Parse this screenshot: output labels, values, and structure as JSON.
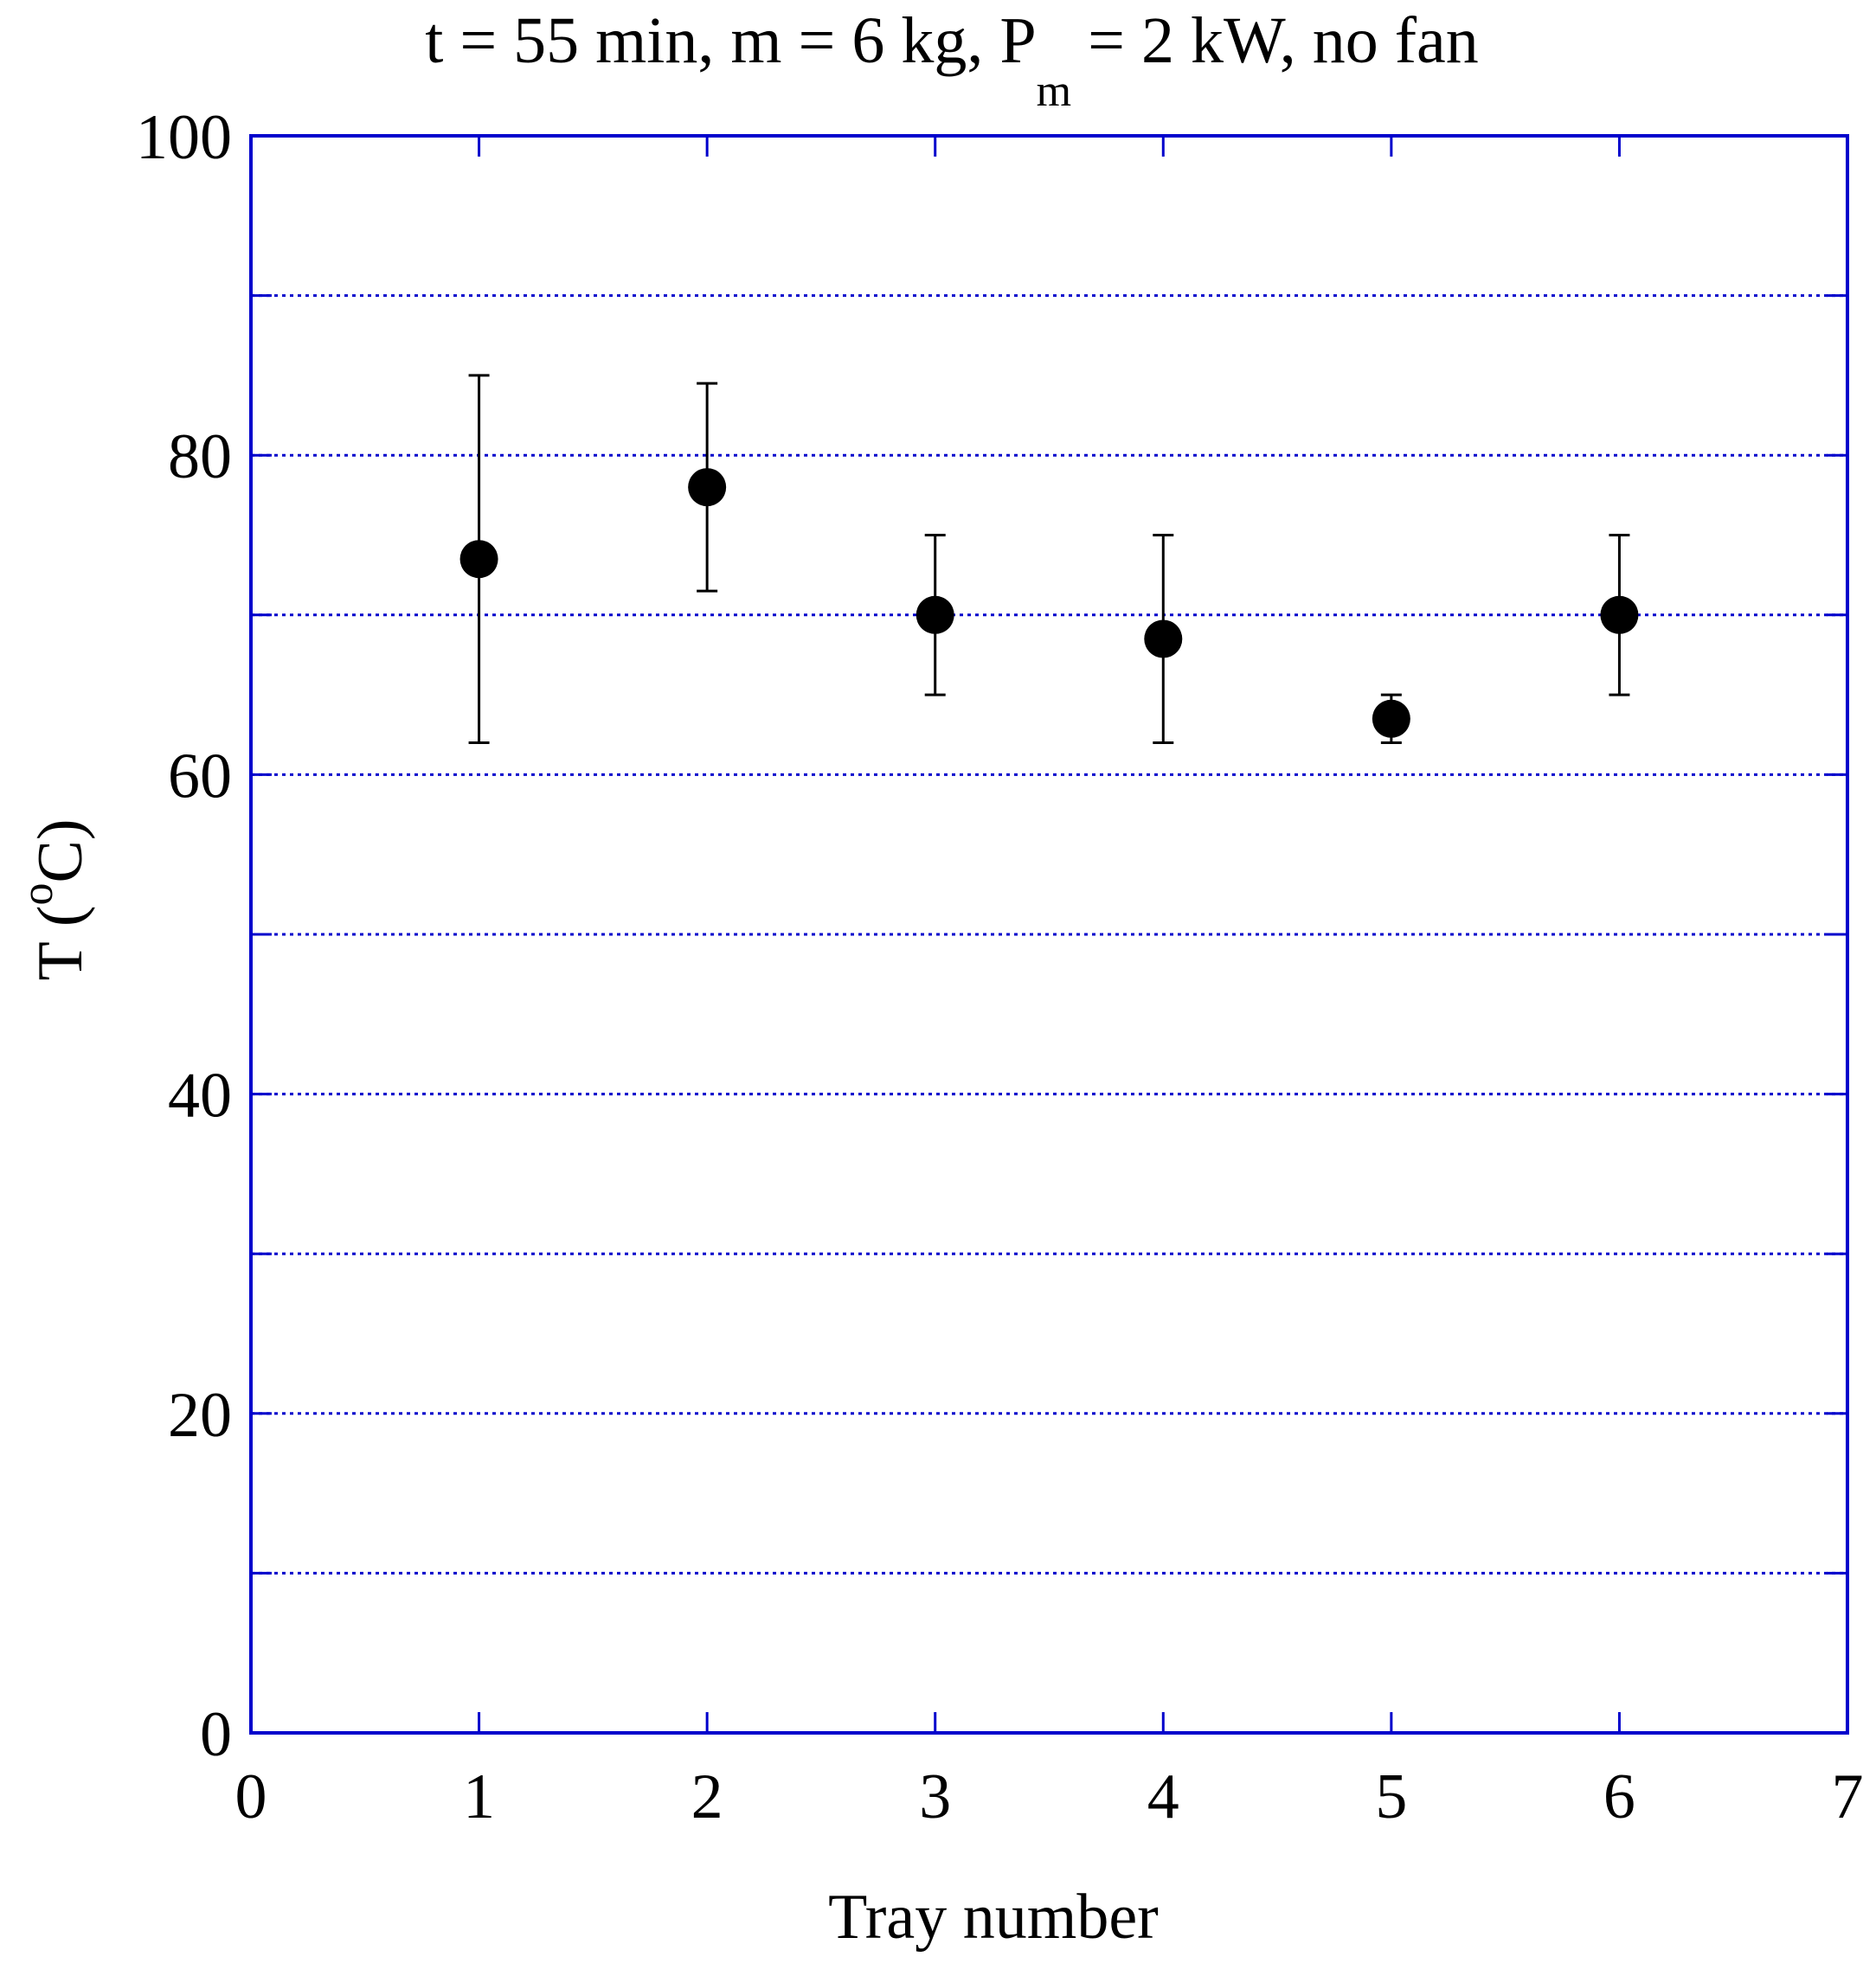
{
  "chart_data": {
    "type": "scatter",
    "title": {
      "prefix": "t = 55 min, m = 6 kg, P",
      "subscript": "m",
      "suffix": " = 2 kW, no fan"
    },
    "xlabel": "Tray number",
    "ylabel": {
      "prefix": "T (",
      "superscript": "o",
      "suffix": "C)"
    },
    "xlim": [
      0,
      7
    ],
    "ylim": [
      0,
      100
    ],
    "x_ticks": [
      0,
      1,
      2,
      3,
      4,
      5,
      6,
      7
    ],
    "y_ticks_labeled": [
      0,
      20,
      40,
      60,
      80,
      100
    ],
    "y_gridlines": [
      10,
      20,
      30,
      40,
      50,
      60,
      70,
      80,
      90
    ],
    "grid": "horizontal dotted",
    "axis_color": "#0000cc",
    "marker_color": "#000000",
    "points": [
      {
        "x": 1,
        "y": 73.5,
        "err_low": 62.0,
        "err_high": 85.0
      },
      {
        "x": 2,
        "y": 78.0,
        "err_low": 71.5,
        "err_high": 84.5
      },
      {
        "x": 3,
        "y": 70.0,
        "err_low": 65.0,
        "err_high": 75.0
      },
      {
        "x": 4,
        "y": 68.5,
        "err_low": 62.0,
        "err_high": 75.0
      },
      {
        "x": 5,
        "y": 63.5,
        "err_low": 62.0,
        "err_high": 65.0
      },
      {
        "x": 6,
        "y": 70.0,
        "err_low": 65.0,
        "err_high": 75.0
      }
    ]
  }
}
